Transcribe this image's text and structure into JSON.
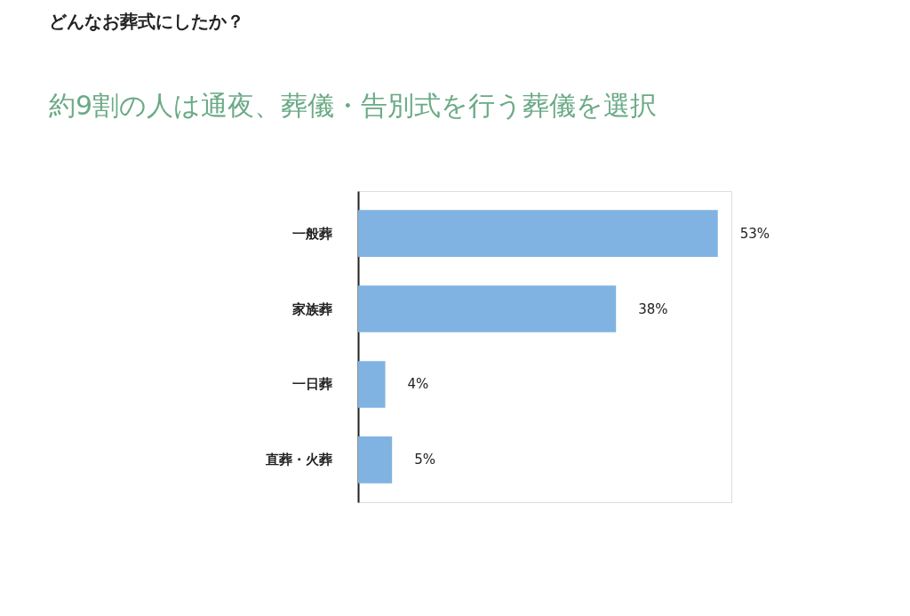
{
  "chart_data": {
    "type": "bar",
    "orientation": "horizontal",
    "title": "どんなお葬式にしたか？",
    "subtitle": "約9割の人は通夜、葬儀・告別式を行う葬儀を選択",
    "categories": [
      "一般葬",
      "家族葬",
      "一日葬",
      "直葬・火葬"
    ],
    "values": [
      53,
      38,
      4,
      5
    ],
    "value_labels": [
      "53%",
      "38%",
      "4%",
      "5%"
    ],
    "color": "#80b3e1",
    "grid": false
  }
}
